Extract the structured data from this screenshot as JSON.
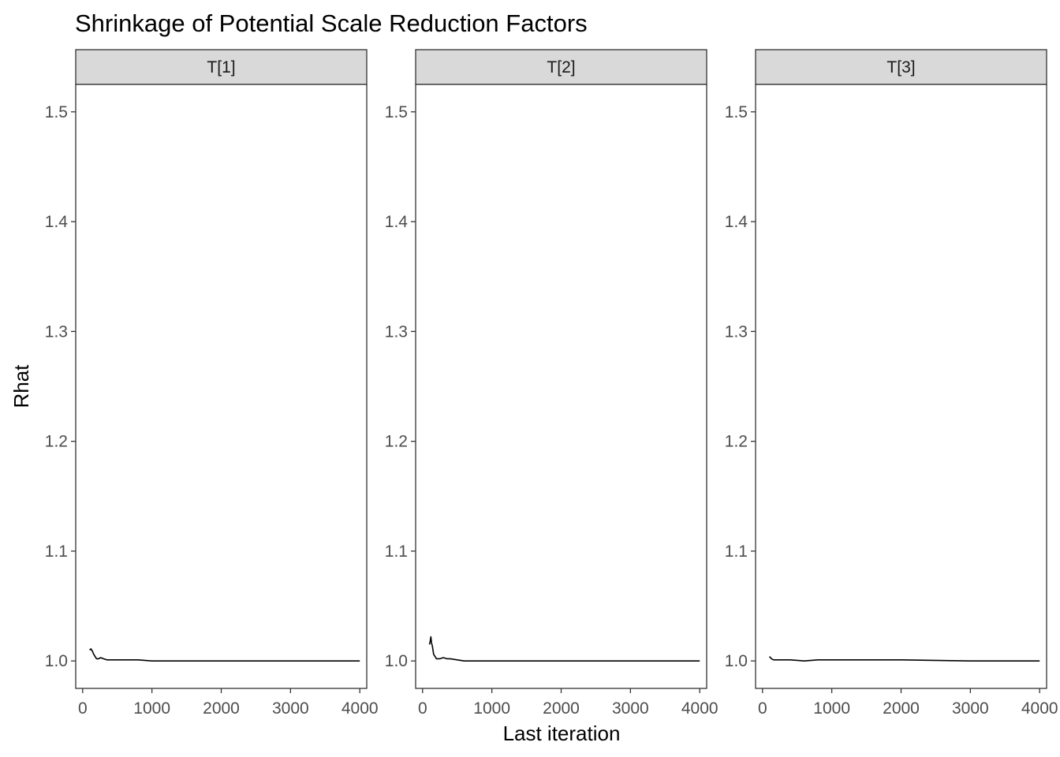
{
  "chart_data": {
    "type": "line",
    "title": "Shrinkage of Potential Scale Reduction Factors",
    "xlabel": "Last iteration",
    "ylabel": "Rhat",
    "xlim": [
      -100,
      4100
    ],
    "ylim": [
      0.975,
      1.525
    ],
    "x_ticks": [
      0,
      1000,
      2000,
      3000,
      4000
    ],
    "y_ticks": [
      1.0,
      1.1,
      1.2,
      1.3,
      1.4,
      1.5
    ],
    "x_tick_labels": [
      "0",
      "1000",
      "2000",
      "3000",
      "4000"
    ],
    "y_tick_labels": [
      "1.0",
      "1.1",
      "1.2",
      "1.3",
      "1.4",
      "1.5"
    ],
    "grid": false,
    "line_color": "#000000",
    "strip_fill": "#d9d9d9",
    "panels": [
      {
        "label": "T[1]",
        "x": [
          100,
          120,
          140,
          160,
          180,
          200,
          230,
          260,
          300,
          350,
          400,
          500,
          600,
          800,
          1000,
          1500,
          2000,
          3000,
          4000
        ],
        "y": [
          1.01,
          1.011,
          1.009,
          1.006,
          1.004,
          1.002,
          1.002,
          1.003,
          1.002,
          1.001,
          1.001,
          1.001,
          1.001,
          1.001,
          1.0,
          1.0,
          1.0,
          1.0,
          1.0
        ]
      },
      {
        "label": "T[2]",
        "x": [
          100,
          110,
          120,
          130,
          140,
          160,
          180,
          200,
          250,
          300,
          350,
          400,
          500,
          600,
          800,
          1000,
          2000,
          3000,
          4000
        ],
        "y": [
          1.015,
          1.018,
          1.022,
          1.016,
          1.014,
          1.006,
          1.004,
          1.002,
          1.002,
          1.003,
          1.002,
          1.002,
          1.001,
          1.0,
          1.0,
          1.0,
          1.0,
          1.0,
          1.0
        ]
      },
      {
        "label": "T[3]",
        "x": [
          100,
          130,
          160,
          200,
          250,
          300,
          400,
          600,
          800,
          1000,
          1500,
          2000,
          3000,
          4000
        ],
        "y": [
          1.004,
          1.002,
          1.001,
          1.001,
          1.001,
          1.001,
          1.001,
          1.0,
          1.001,
          1.001,
          1.001,
          1.001,
          1.0,
          1.0
        ]
      }
    ]
  }
}
